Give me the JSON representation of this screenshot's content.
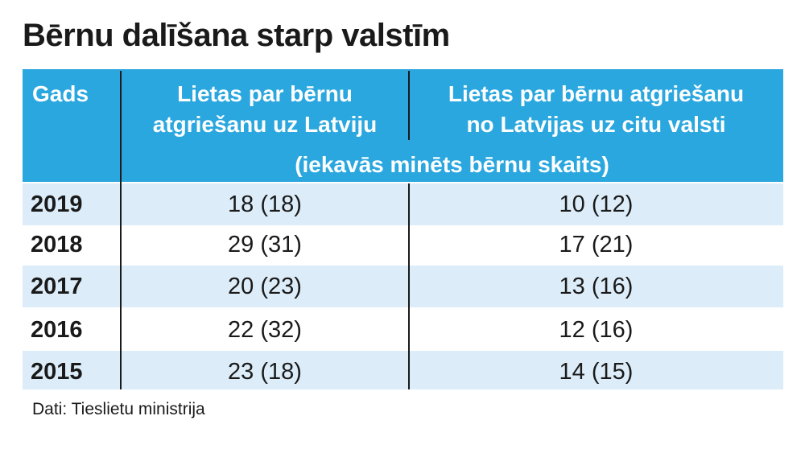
{
  "title": "Bērnu dalīšana starp valstīm",
  "table": {
    "header": [
      "Gads",
      [
        "Lietas par bērnu",
        "atgriešanu uz Latviju"
      ],
      [
        "Lietas par bērnu atgriešanu",
        "no Latvijas uz citu valsti"
      ]
    ],
    "subheader": "(iekavās minēts bērnu skaits)",
    "rows": [
      [
        "2019",
        "18 (18)",
        "10 (12)"
      ],
      [
        "2018",
        "29 (31)",
        "17 (21)"
      ],
      [
        "2017",
        "20 (23)",
        "13 (16)"
      ],
      [
        "2016",
        "22 (32)",
        "12 (16)"
      ],
      [
        "2015",
        "23 (18)",
        "14 (15)"
      ]
    ]
  },
  "source": "Dati: Tieslietu ministrija"
}
